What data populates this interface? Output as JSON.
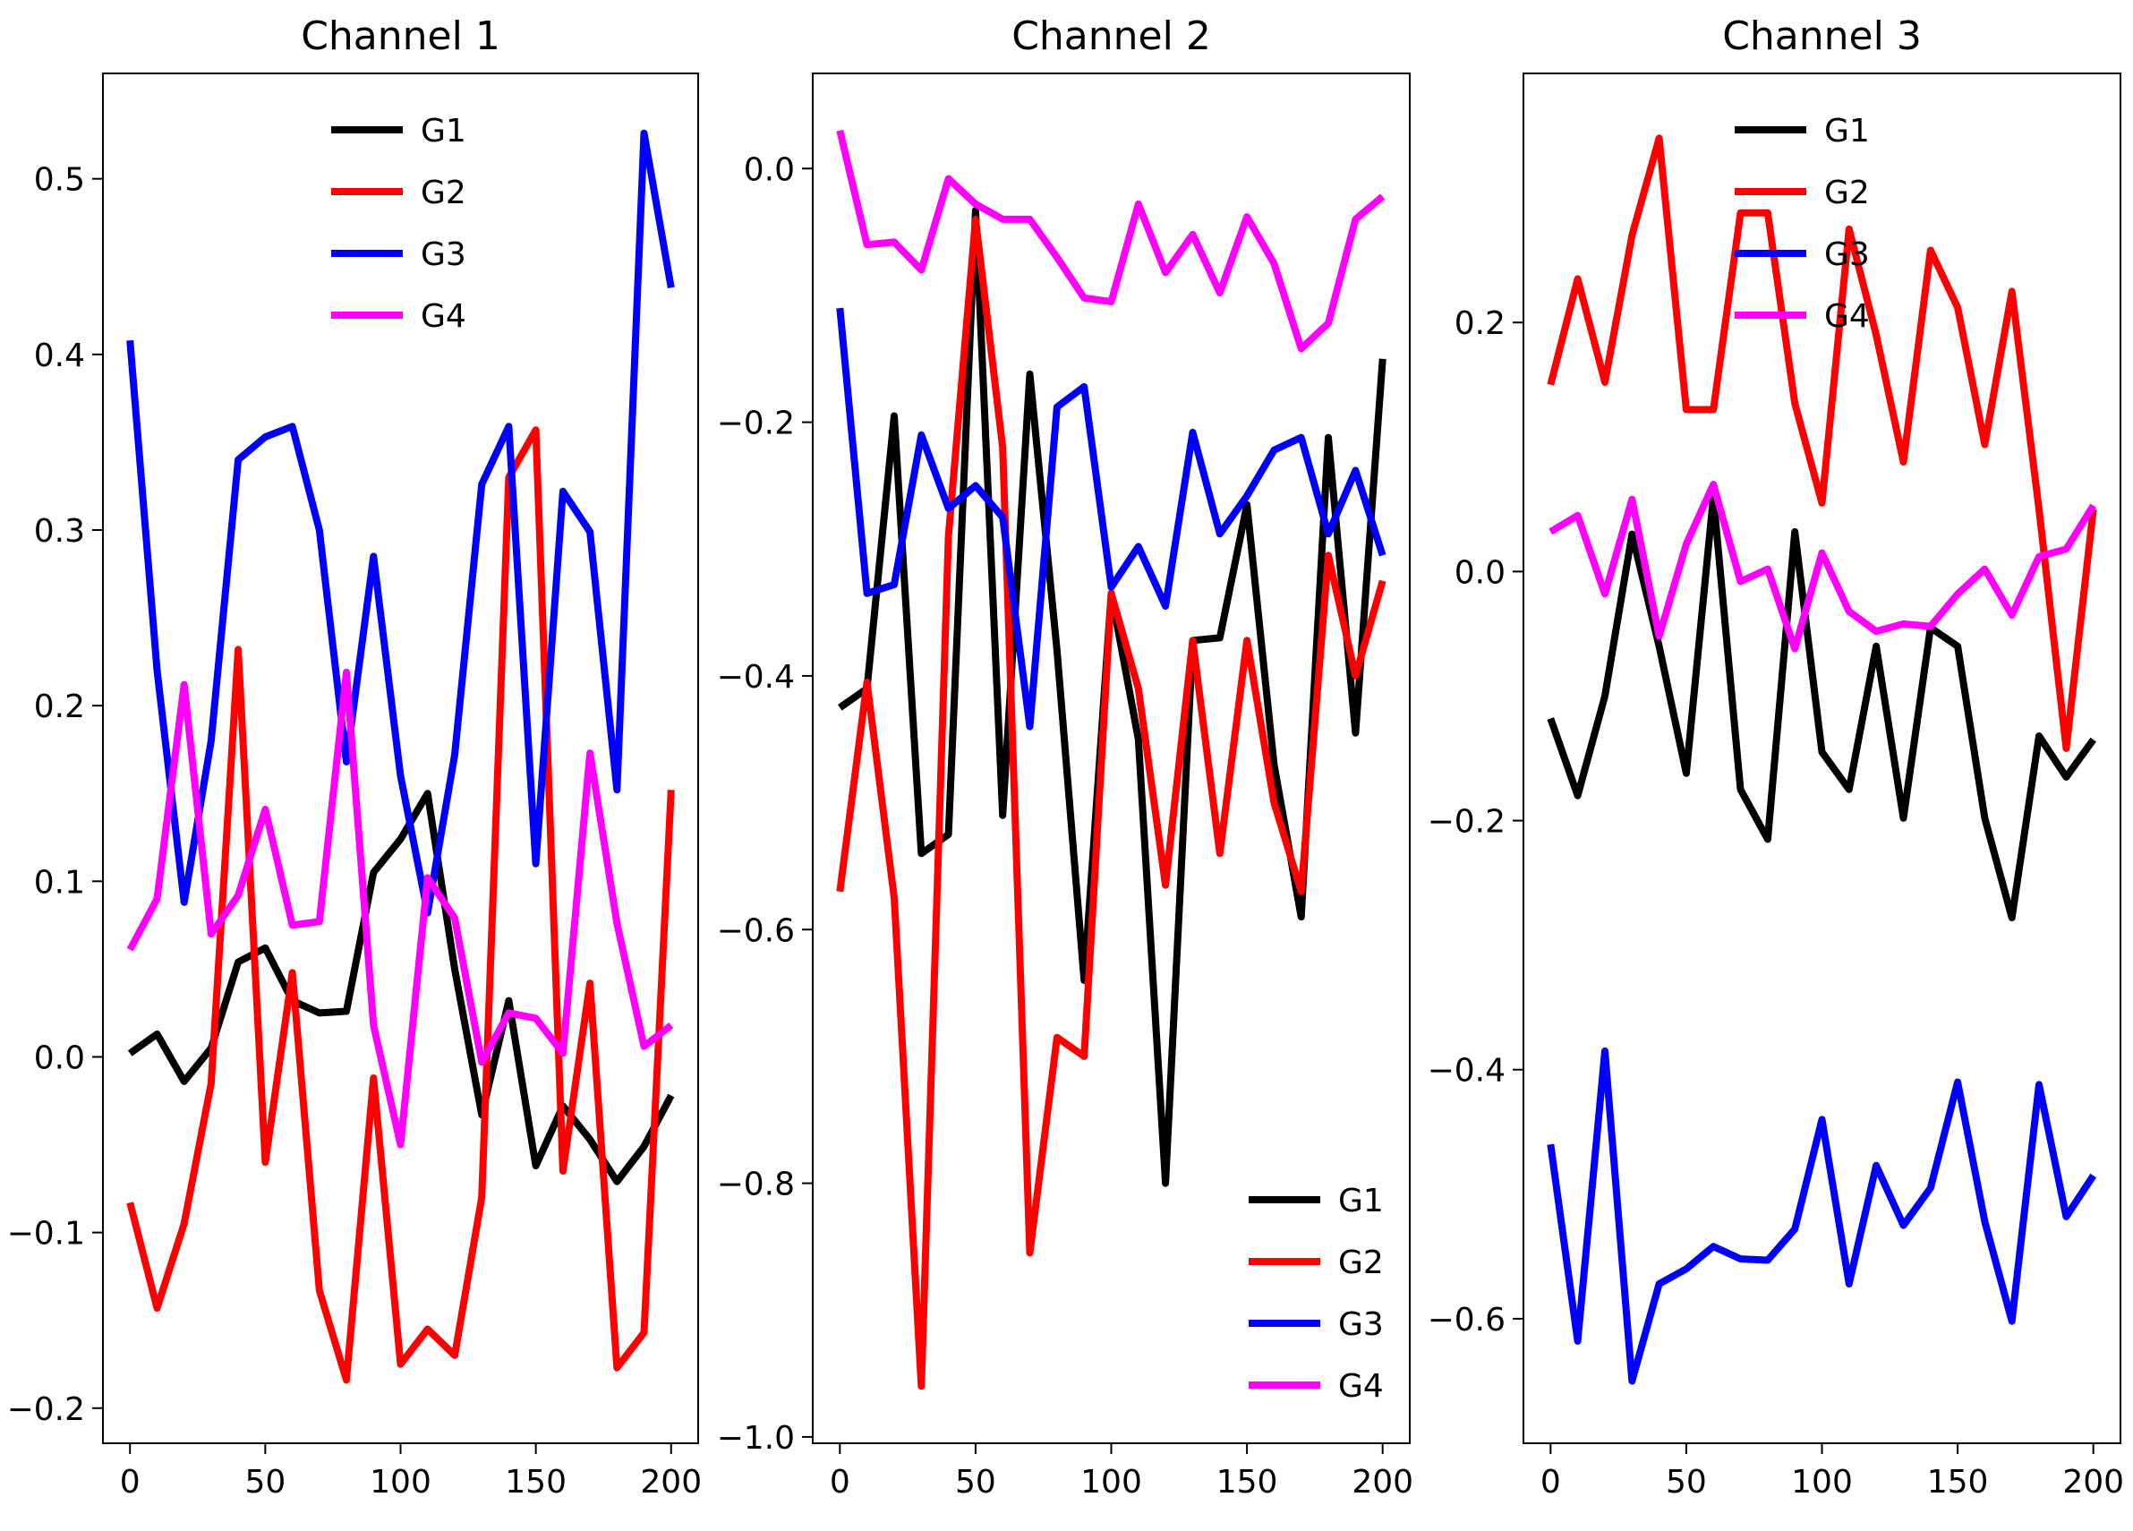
{
  "colors": {
    "G1": "#000000",
    "G2": "#ff0000",
    "G3": "#0000ff",
    "G4": "#ff00ff"
  },
  "chart_data": [
    {
      "type": "line",
      "title": "Channel 1",
      "xlabel": "",
      "ylabel": "",
      "xlim": [
        -10,
        210
      ],
      "ylim": [
        -0.22,
        0.56
      ],
      "xticks": [
        0,
        50,
        100,
        150,
        200
      ],
      "xtick_labels": [
        "0",
        "50",
        "100",
        "150",
        "200"
      ],
      "yticks": [
        -0.2,
        -0.1,
        0.0,
        0.1,
        0.2,
        0.3,
        0.4,
        0.5
      ],
      "ytick_labels": [
        "−0.2",
        "−0.1",
        "0.0",
        "0.1",
        "0.2",
        "0.3",
        "0.4",
        "0.5"
      ],
      "legend_position": "upper-center",
      "x": [
        0,
        10,
        20,
        30,
        40,
        50,
        60,
        70,
        80,
        90,
        100,
        110,
        120,
        130,
        140,
        150,
        160,
        170,
        180,
        190,
        200
      ],
      "series": [
        {
          "name": "G1",
          "values": [
            0.002,
            0.013,
            -0.014,
            0.005,
            0.054,
            0.062,
            0.032,
            0.025,
            0.026,
            0.105,
            0.124,
            0.15,
            0.05,
            -0.033,
            0.032,
            -0.062,
            -0.028,
            -0.047,
            -0.071,
            -0.051,
            -0.022
          ]
        },
        {
          "name": "G2",
          "values": [
            -0.083,
            -0.143,
            -0.095,
            -0.015,
            0.232,
            -0.06,
            0.048,
            -0.133,
            -0.184,
            -0.012,
            -0.175,
            -0.155,
            -0.17,
            -0.08,
            0.33,
            0.357,
            -0.065,
            0.042,
            -0.177,
            -0.157,
            0.152
          ]
        },
        {
          "name": "G3",
          "values": [
            0.408,
            0.22,
            0.088,
            0.18,
            0.34,
            0.353,
            0.359,
            0.3,
            0.168,
            0.285,
            0.16,
            0.082,
            0.172,
            0.326,
            0.359,
            0.11,
            0.322,
            0.299,
            0.152,
            0.526,
            0.438
          ]
        },
        {
          "name": "G4",
          "values": [
            0.061,
            0.09,
            0.212,
            0.07,
            0.092,
            0.141,
            0.075,
            0.077,
            0.219,
            0.018,
            -0.05,
            0.102,
            0.079,
            -0.003,
            0.025,
            0.022,
            0.002,
            0.173,
            0.076,
            0.006,
            0.018
          ]
        }
      ]
    },
    {
      "type": "line",
      "title": "Channel 2",
      "xlabel": "",
      "ylabel": "",
      "xlim": [
        -10,
        210
      ],
      "ylim": [
        -1.005,
        0.075
      ],
      "xticks": [
        0,
        50,
        100,
        150,
        200
      ],
      "xtick_labels": [
        "0",
        "50",
        "100",
        "150",
        "200"
      ],
      "yticks": [
        -1.0,
        -0.8,
        -0.6,
        -0.4,
        -0.2,
        0.0
      ],
      "ytick_labels": [
        "−1.0",
        "−0.8",
        "−0.6",
        "−0.4",
        "−0.2",
        "0.0"
      ],
      "legend_position": "lower-right",
      "x": [
        0,
        10,
        20,
        30,
        40,
        50,
        60,
        70,
        80,
        90,
        100,
        110,
        120,
        130,
        140,
        150,
        160,
        170,
        180,
        190,
        200
      ],
      "series": [
        {
          "name": "G1",
          "values": [
            -0.425,
            -0.41,
            -0.195,
            -0.54,
            -0.525,
            -0.033,
            -0.51,
            -0.162,
            -0.38,
            -0.64,
            -0.335,
            -0.45,
            -0.8,
            -0.372,
            -0.37,
            -0.265,
            -0.47,
            -0.59,
            -0.212,
            -0.445,
            -0.15
          ]
        },
        {
          "name": "G2",
          "values": [
            -0.57,
            -0.405,
            -0.575,
            -0.96,
            -0.29,
            -0.04,
            -0.22,
            -0.855,
            -0.685,
            -0.7,
            -0.335,
            -0.41,
            -0.565,
            -0.372,
            -0.54,
            -0.372,
            -0.5,
            -0.57,
            -0.305,
            -0.4,
            -0.325
          ]
        },
        {
          "name": "G3",
          "values": [
            -0.11,
            -0.335,
            -0.328,
            -0.21,
            -0.268,
            -0.25,
            -0.275,
            -0.44,
            -0.188,
            -0.172,
            -0.33,
            -0.298,
            -0.345,
            -0.208,
            -0.288,
            -0.258,
            -0.222,
            -0.212,
            -0.288,
            -0.238,
            -0.305
          ]
        },
        {
          "name": "G4",
          "values": [
            0.03,
            -0.06,
            -0.058,
            -0.08,
            -0.008,
            -0.028,
            -0.04,
            -0.04,
            -0.07,
            -0.102,
            -0.105,
            -0.028,
            -0.082,
            -0.052,
            -0.098,
            -0.038,
            -0.075,
            -0.142,
            -0.122,
            -0.04,
            -0.022
          ]
        }
      ]
    },
    {
      "type": "line",
      "title": "Channel 3",
      "xlabel": "",
      "ylabel": "",
      "xlim": [
        -10,
        210
      ],
      "ylim": [
        -0.7,
        0.4
      ],
      "xticks": [
        0,
        50,
        100,
        150,
        200
      ],
      "xtick_labels": [
        "0",
        "50",
        "100",
        "150",
        "200"
      ],
      "yticks": [
        -0.6,
        -0.4,
        -0.2,
        0.0,
        0.2
      ],
      "ytick_labels": [
        "−0.6",
        "−0.4",
        "−0.2",
        "0.0",
        "0.2"
      ],
      "legend_position": "upper-right",
      "x": [
        0,
        10,
        20,
        30,
        40,
        50,
        60,
        70,
        80,
        90,
        100,
        110,
        120,
        130,
        140,
        150,
        160,
        170,
        180,
        190,
        200
      ],
      "series": [
        {
          "name": "G1",
          "values": [
            -0.118,
            -0.18,
            -0.1,
            0.03,
            -0.06,
            -0.162,
            0.06,
            -0.175,
            -0.215,
            0.032,
            -0.145,
            -0.175,
            -0.06,
            -0.198,
            -0.045,
            -0.06,
            -0.198,
            -0.278,
            -0.132,
            -0.165,
            -0.135
          ]
        },
        {
          "name": "G2",
          "values": [
            0.15,
            0.235,
            0.152,
            0.27,
            0.348,
            0.13,
            0.13,
            0.288,
            0.288,
            0.135,
            0.055,
            0.275,
            0.19,
            0.088,
            0.258,
            0.212,
            0.102,
            0.225,
            0.05,
            -0.142,
            0.05
          ]
        },
        {
          "name": "G3",
          "values": [
            -0.46,
            -0.618,
            -0.385,
            -0.65,
            -0.572,
            -0.56,
            -0.542,
            -0.552,
            -0.553,
            -0.528,
            -0.44,
            -0.572,
            -0.477,
            -0.525,
            -0.495,
            -0.41,
            -0.522,
            -0.602,
            -0.412,
            -0.518,
            -0.485
          ]
        },
        {
          "name": "G4",
          "values": [
            0.032,
            0.045,
            -0.018,
            0.058,
            -0.052,
            0.022,
            0.07,
            -0.008,
            0.002,
            -0.062,
            0.015,
            -0.032,
            -0.048,
            -0.042,
            -0.044,
            -0.018,
            0.002,
            -0.035,
            0.012,
            0.018,
            0.053
          ]
        }
      ]
    }
  ]
}
